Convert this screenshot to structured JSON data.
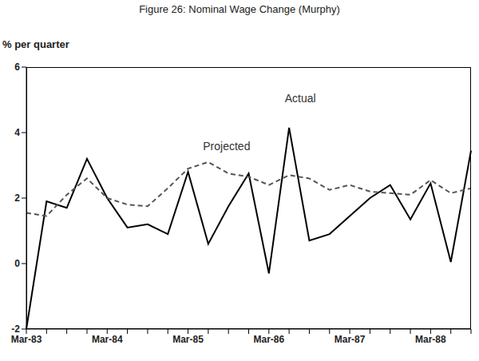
{
  "chart_data": {
    "type": "line",
    "title": "Figure 26: Nominal Wage Change (Murphy)",
    "y_label": "% per quarter",
    "categories": [
      "Mar-83",
      null,
      null,
      null,
      "Mar-84",
      null,
      null,
      null,
      "Mar-85",
      null,
      null,
      null,
      "Mar-86",
      null,
      null,
      null,
      "Mar-87",
      null,
      null,
      null,
      "Mar-88",
      null,
      null
    ],
    "series": [
      {
        "name": "Actual",
        "color": "#000000",
        "line_style": "solid",
        "values": [
          -2.0,
          1.9,
          1.7,
          3.2,
          2.0,
          1.1,
          1.2,
          0.9,
          2.8,
          0.6,
          1.75,
          2.75,
          -0.3,
          4.15,
          0.7,
          0.9,
          1.45,
          2.0,
          2.4,
          1.35,
          2.45,
          0.05,
          3.45
        ]
      },
      {
        "name": "Projected",
        "color": "#555555",
        "line_style": "dashed",
        "values": [
          1.55,
          1.45,
          2.1,
          2.6,
          2.0,
          1.8,
          1.75,
          2.3,
          2.9,
          3.1,
          2.75,
          2.65,
          2.4,
          2.7,
          2.6,
          2.25,
          2.4,
          2.2,
          2.15,
          2.1,
          2.55,
          2.15,
          2.3
        ]
      }
    ],
    "ylim": [
      -2,
      6
    ],
    "yticks": [
      -2,
      0,
      2,
      4,
      6
    ],
    "grid": false
  }
}
